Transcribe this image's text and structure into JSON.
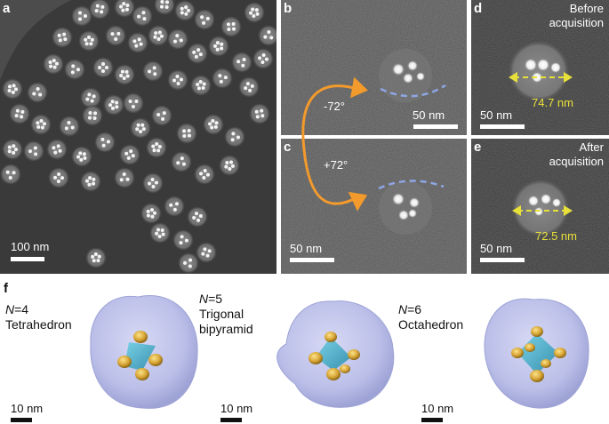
{
  "panel_a": {
    "label": "a",
    "scale_bar": "100 nm"
  },
  "panel_b": {
    "label": "b",
    "scale_bar": "50 nm",
    "angle": "-72°"
  },
  "panel_c": {
    "label": "c",
    "scale_bar": "50 nm",
    "angle": "+72°"
  },
  "panel_d": {
    "label": "d",
    "note_line1": "Before",
    "note_line2": "acquisition",
    "diameter": "74.7 nm",
    "scale_bar": "50 nm"
  },
  "panel_e": {
    "label": "e",
    "note_line1": "After",
    "note_line2": "acquisition",
    "diameter": "72.5 nm",
    "scale_bar": "50 nm"
  },
  "panel_f": {
    "label": "f",
    "structures": [
      {
        "n_italic": "N",
        "n_value": "=4",
        "name_line1": "Tetrahedron",
        "name_line2": "",
        "scale_bar": "10 nm"
      },
      {
        "n_italic": "N",
        "n_value": "=5",
        "name_line1": "Trigonal",
        "name_line2": "bipyramid",
        "scale_bar": "10 nm"
      },
      {
        "n_italic": "N",
        "n_value": "=6",
        "name_line1": "Octahedron",
        "name_line2": "",
        "scale_bar": "10 nm"
      }
    ]
  },
  "colors": {
    "arrow": "#f39a2c",
    "dashed_arc": "#8fa6e6",
    "measure": "#e8e03a",
    "shell": "#b9bde8",
    "cluster": "#3aa6c4",
    "particle": "#d9a637"
  }
}
